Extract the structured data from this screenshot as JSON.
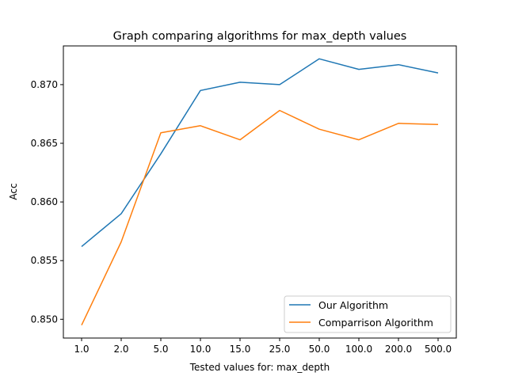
{
  "chart_data": {
    "type": "line",
    "title": "Graph comparing algorithms for max_depth values",
    "xlabel": "Tested values for: max_depth",
    "ylabel": "Acc",
    "categories": [
      "1.0",
      "2.0",
      "5.0",
      "10.0",
      "15.0",
      "25.0",
      "50.0",
      "100.0",
      "200.0",
      "500.0"
    ],
    "series": [
      {
        "name": "Our Algorithm",
        "color": "#1f77b4",
        "values": [
          0.8562,
          0.859,
          0.8641,
          0.8695,
          0.8702,
          0.87,
          0.8722,
          0.8713,
          0.8717,
          0.871
        ]
      },
      {
        "name": "Comparrison Algorithm",
        "color": "#ff7f0e",
        "values": [
          0.8495,
          0.8566,
          0.8659,
          0.8665,
          0.8653,
          0.8678,
          0.8662,
          0.8653,
          0.8667,
          0.8666
        ]
      }
    ],
    "yticks": [
      "0.850",
      "0.855",
      "0.860",
      "0.865",
      "0.870"
    ],
    "ylim": [
      0.8484,
      0.8733
    ],
    "grid": false,
    "legend_position": "lower-right"
  }
}
